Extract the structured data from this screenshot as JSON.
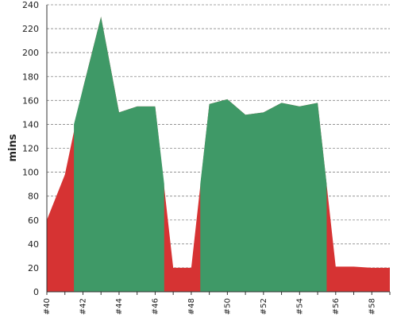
{
  "chart_data": {
    "type": "area",
    "ylabel": "mins",
    "xlabel": "",
    "title": "",
    "ylim": [
      0,
      240
    ],
    "y_ticks": [
      0,
      20,
      40,
      60,
      80,
      100,
      120,
      140,
      160,
      180,
      200,
      220,
      240
    ],
    "x_range": [
      40,
      59
    ],
    "x_tick_values": [
      40,
      42,
      44,
      46,
      48,
      50,
      52,
      54,
      56,
      58
    ],
    "x_tick_labels": [
      "#40",
      "#42",
      "#44",
      "#46",
      "#48",
      "#50",
      "#52",
      "#54",
      "#56",
      "#58"
    ],
    "grid": true,
    "colors": {
      "red": "#d63333",
      "green": "#3f9967",
      "grid": "#888888"
    },
    "series": [
      {
        "color": "red",
        "x": [
          40,
          41,
          42,
          43,
          44,
          45,
          46,
          47,
          48,
          49,
          50,
          51,
          52,
          53,
          54,
          55,
          56,
          57,
          58,
          59
        ],
        "values": [
          60,
          98,
          170,
          230,
          150,
          155,
          155,
          20,
          20,
          157,
          161,
          148,
          150,
          158,
          155,
          158,
          21,
          21,
          20,
          20
        ]
      },
      {
        "color": "green",
        "x": [
          41.5,
          42,
          43,
          44,
          45,
          46,
          46.5
        ],
        "values": [
          140,
          170,
          230,
          150,
          155,
          155,
          90
        ]
      },
      {
        "color": "green",
        "x": [
          48.5,
          49,
          50,
          51,
          52,
          53,
          54,
          55,
          55.5
        ],
        "values": [
          90,
          157,
          161,
          148,
          150,
          158,
          155,
          158,
          90
        ]
      }
    ]
  }
}
